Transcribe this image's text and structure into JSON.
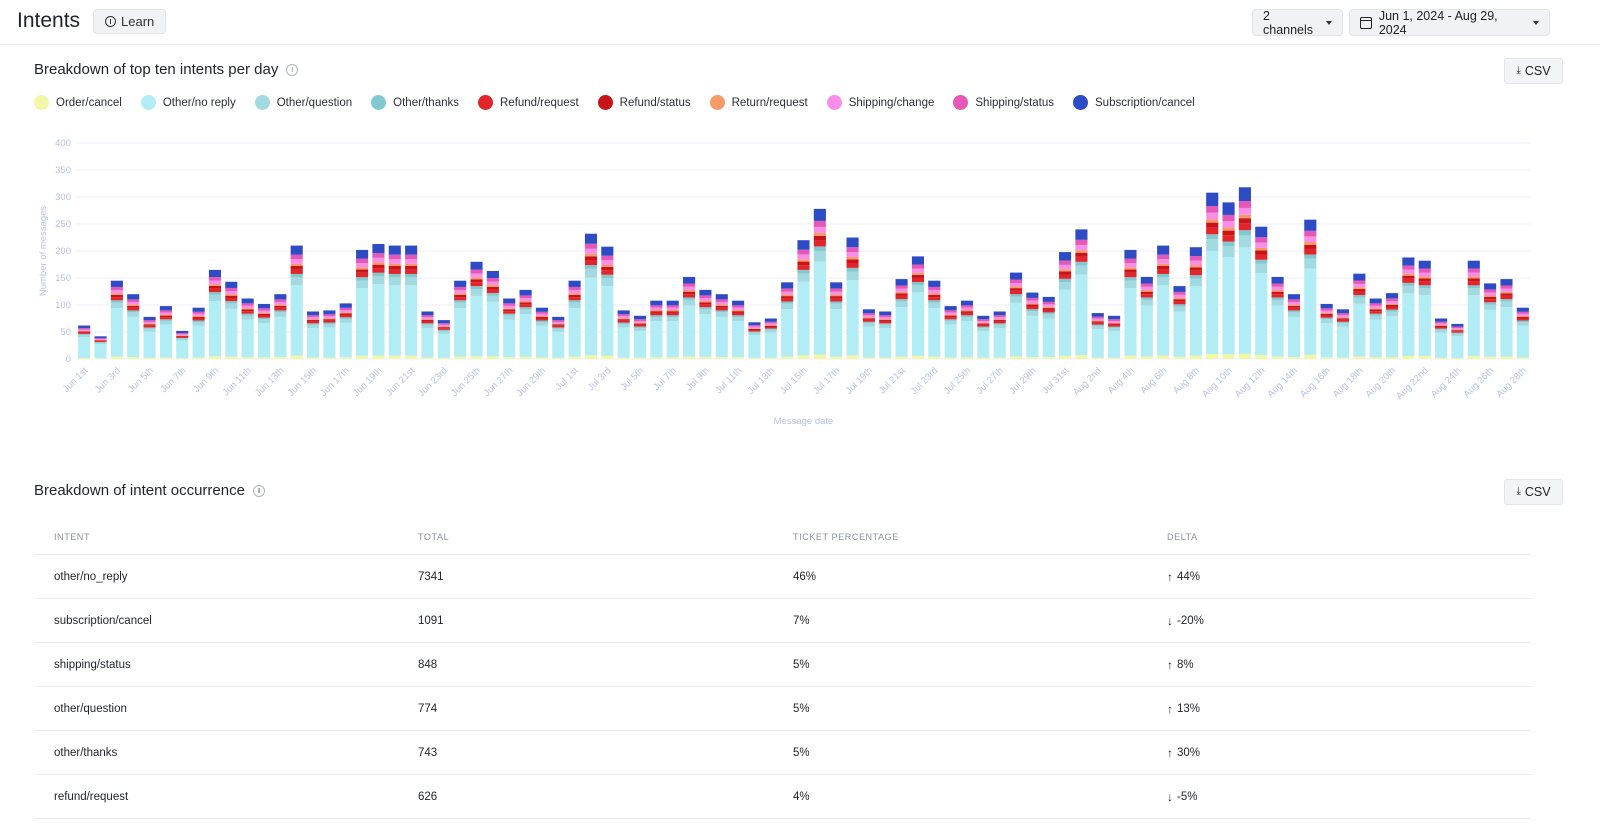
{
  "header": {
    "title": "Intents",
    "learn_label": "Learn",
    "channels_label": "2 channels",
    "date_range_label": "Jun 1, 2024 - Aug 29, 2024"
  },
  "intents_chart": {
    "title": "Breakdown of top ten intents per day",
    "csv_label": "CSV"
  },
  "occurrence": {
    "title": "Breakdown of intent occurrence",
    "csv_label": "CSV",
    "columns": [
      "INTENT",
      "TOTAL",
      "TICKET PERCENTAGE",
      "DELTA"
    ],
    "rows": [
      {
        "intent": "other/no_reply",
        "total": "7341",
        "percentage": "46%",
        "delta": "44%",
        "direction": "up"
      },
      {
        "intent": "subscription/cancel",
        "total": "1091",
        "percentage": "7%",
        "delta": "-20%",
        "direction": "down"
      },
      {
        "intent": "shipping/status",
        "total": "848",
        "percentage": "5%",
        "delta": "8%",
        "direction": "up"
      },
      {
        "intent": "other/question",
        "total": "774",
        "percentage": "5%",
        "delta": "13%",
        "direction": "up"
      },
      {
        "intent": "other/thanks",
        "total": "743",
        "percentage": "5%",
        "delta": "30%",
        "direction": "up"
      },
      {
        "intent": "refund/request",
        "total": "626",
        "percentage": "4%",
        "delta": "-5%",
        "direction": "down"
      }
    ]
  },
  "icons": {
    "learn": "info-icon",
    "date": "calendar-icon",
    "csv": "download-icon",
    "title_info": "info-icon"
  },
  "chart_data": {
    "type": "bar",
    "stacked": true,
    "ylabel": "Number of messages",
    "xlabel": "Message date",
    "ylim": [
      0,
      400
    ],
    "yticks": [
      0,
      50,
      100,
      150,
      200,
      250,
      300,
      350,
      400
    ],
    "grid": true,
    "legend_position": "top-left",
    "xtick_labels": [
      "Jun 1st",
      "Jun 3rd",
      "Jun 5th",
      "Jun 7th",
      "Jun 9th",
      "Jun 11th",
      "Jun 13th",
      "Jun 15th",
      "Jun 17th",
      "Jun 19th",
      "Jun 21st",
      "Jun 23rd",
      "Jun 25th",
      "Jun 27th",
      "Jun 29th",
      "Jul 1st",
      "Jul 3rd",
      "Jul 5th",
      "Jul 7th",
      "Jul 9th",
      "Jul 11th",
      "Jul 13th",
      "Jul 15th",
      "Jul 17th",
      "Jul 19th",
      "Jul 21st",
      "Jul 23rd",
      "Jul 25th",
      "Jul 27th",
      "Jul 29th",
      "Jul 31st",
      "Aug 2nd",
      "Aug 4th",
      "Aug 6th",
      "Aug 8th",
      "Aug 10th",
      "Aug 12th",
      "Aug 14th",
      "Aug 16th",
      "Aug 18th",
      "Aug 20th",
      "Aug 22nd",
      "Aug 24th",
      "Aug 26th",
      "Aug 28th"
    ],
    "totals": [
      62,
      42,
      145,
      120,
      78,
      98,
      52,
      95,
      165,
      143,
      112,
      102,
      120,
      210,
      88,
      90,
      103,
      202,
      213,
      210,
      210,
      88,
      72,
      145,
      180,
      163,
      112,
      128,
      95,
      78,
      145,
      232,
      208,
      90,
      80,
      108,
      108,
      152,
      128,
      120,
      108,
      68,
      75,
      142,
      220,
      278,
      142,
      225,
      92,
      88,
      148,
      190,
      145,
      98,
      108,
      80,
      88,
      160,
      123,
      115,
      198,
      240,
      85,
      80,
      202,
      152,
      210,
      135,
      207,
      308,
      290,
      318,
      245,
      152,
      120,
      258,
      102,
      92,
      158,
      112,
      122,
      188,
      182,
      75,
      65,
      182,
      140,
      148,
      95
    ],
    "series": [
      {
        "name": "Order/cancel",
        "color": "#f1f7a6",
        "share": 0.03
      },
      {
        "name": "Other/no reply",
        "color": "#b2ecf5",
        "share": 0.62
      },
      {
        "name": "Other/question",
        "color": "#a3d9e0",
        "share": 0.07
      },
      {
        "name": "Other/thanks",
        "color": "#82c9cf",
        "share": 0.03
      },
      {
        "name": "Refund/request",
        "color": "#e3242b",
        "share": 0.04
      },
      {
        "name": "Refund/status",
        "color": "#c81318",
        "share": 0.03
      },
      {
        "name": "Return/request",
        "color": "#f79a6a",
        "share": 0.02
      },
      {
        "name": "Shipping/change",
        "color": "#f98ee9",
        "share": 0.04
      },
      {
        "name": "Shipping/status",
        "color": "#e557b8",
        "share": 0.04
      },
      {
        "name": "Subscription/cancel",
        "color": "#2c4bc4",
        "share": 0.08
      }
    ]
  }
}
